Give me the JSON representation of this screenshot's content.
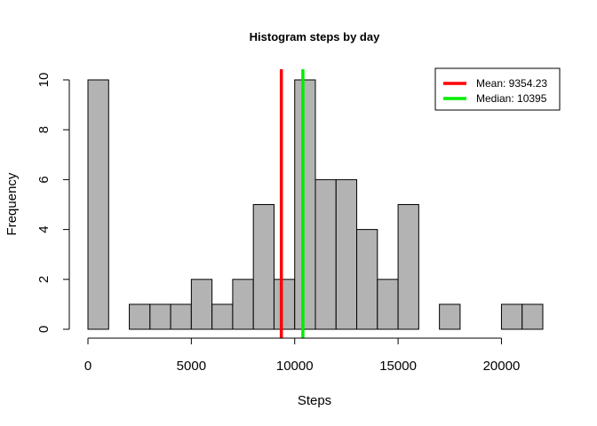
{
  "chart_data": {
    "type": "bar",
    "title": "Histogram steps by day",
    "xlabel": "Steps",
    "ylabel": "Frequency",
    "bin_width": 1000,
    "bins": [
      {
        "start": 0,
        "end": 1000,
        "count": 10
      },
      {
        "start": 1000,
        "end": 2000,
        "count": 0
      },
      {
        "start": 2000,
        "end": 3000,
        "count": 1
      },
      {
        "start": 3000,
        "end": 4000,
        "count": 1
      },
      {
        "start": 4000,
        "end": 5000,
        "count": 1
      },
      {
        "start": 5000,
        "end": 6000,
        "count": 2
      },
      {
        "start": 6000,
        "end": 7000,
        "count": 1
      },
      {
        "start": 7000,
        "end": 8000,
        "count": 2
      },
      {
        "start": 8000,
        "end": 9000,
        "count": 5
      },
      {
        "start": 9000,
        "end": 10000,
        "count": 2
      },
      {
        "start": 10000,
        "end": 11000,
        "count": 10
      },
      {
        "start": 11000,
        "end": 12000,
        "count": 6
      },
      {
        "start": 12000,
        "end": 13000,
        "count": 6
      },
      {
        "start": 13000,
        "end": 14000,
        "count": 4
      },
      {
        "start": 14000,
        "end": 15000,
        "count": 2
      },
      {
        "start": 15000,
        "end": 16000,
        "count": 5
      },
      {
        "start": 16000,
        "end": 17000,
        "count": 0
      },
      {
        "start": 17000,
        "end": 18000,
        "count": 1
      },
      {
        "start": 18000,
        "end": 19000,
        "count": 0
      },
      {
        "start": 19000,
        "end": 20000,
        "count": 0
      },
      {
        "start": 20000,
        "end": 21000,
        "count": 1
      },
      {
        "start": 21000,
        "end": 22000,
        "count": 1
      }
    ],
    "xlim": [
      0,
      22000
    ],
    "ylim": [
      0,
      10
    ],
    "xticks": [
      0,
      5000,
      10000,
      15000,
      20000
    ],
    "yticks": [
      0,
      2,
      4,
      6,
      8,
      10
    ],
    "bar_color": "#b3b3b3",
    "reference_lines": [
      {
        "label": "Mean:  9354.23",
        "value": 9354.23,
        "color": "#ff0000"
      },
      {
        "label": "Median:  10395",
        "value": 10395,
        "color": "#00ee00"
      }
    ],
    "legend_position": "top-right",
    "grid": false
  }
}
